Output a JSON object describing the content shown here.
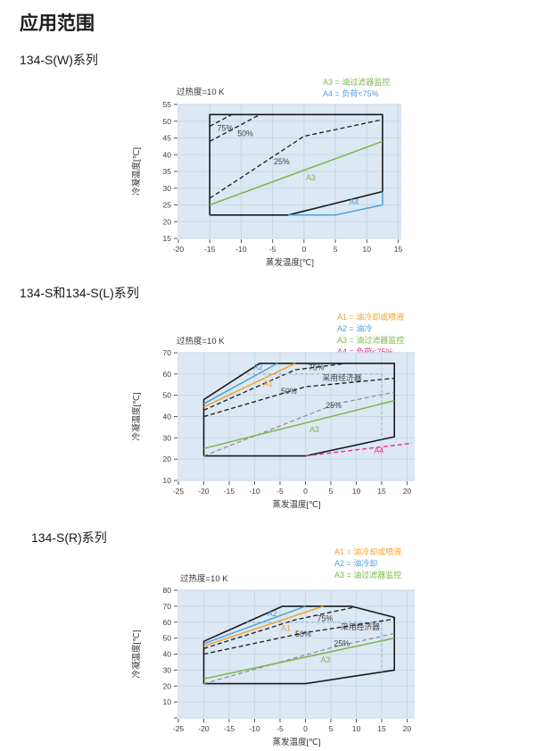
{
  "page": {
    "title": "应用范围"
  },
  "colors": {
    "plot_bg": "#dce8f4",
    "grid": "#c6d7e8",
    "black": "#1a1a1a",
    "green": "#7ab648",
    "blue": "#4da0d8",
    "orange": "#f0a22e",
    "pink": "#e6318a",
    "grey": "#8c8c8c",
    "econ_blue": "#88b2d8",
    "text": "#3d3d3d"
  },
  "chart_data": [
    {
      "type": "line",
      "section_title": "134-S(W)系列",
      "superheat": "过热度=10 K",
      "xlabel": "蒸发温度[℃]",
      "ylabel": "冷凝温度[℃]",
      "xlim": [
        -20,
        15
      ],
      "ylim": [
        15,
        55
      ],
      "xticks": [
        {
          "v": -20,
          "l": "-20"
        },
        {
          "v": -15,
          "l": "-15"
        },
        {
          "v": -10,
          "l": "-10"
        },
        {
          "v": -5,
          "l": "-5"
        },
        {
          "v": 0,
          "l": "0"
        },
        {
          "v": 5,
          "l": "5"
        },
        {
          "v": 10,
          "l": "10"
        },
        {
          "v": 15,
          "l": "15"
        }
      ],
      "yticks": [
        {
          "v": 15,
          "l": "15"
        },
        {
          "v": 20,
          "l": "20"
        },
        {
          "v": 25,
          "l": "25"
        },
        {
          "v": 30,
          "l": "30"
        },
        {
          "v": 35,
          "l": "35"
        },
        {
          "v": 40,
          "l": "40"
        },
        {
          "v": 45,
          "l": "45"
        },
        {
          "v": 50,
          "l": "50"
        },
        {
          "v": 55,
          "l": "55"
        }
      ],
      "grid": true,
      "legend_position": "top-right",
      "legend": [
        {
          "label": "A3 = 油过滤器监控",
          "color": "#7ab648"
        },
        {
          "label": "A4 = 负荷<75%",
          "color": "#4da0d8"
        }
      ],
      "series": [
        {
          "name": "operating-envelope",
          "color": "#1a1a1a",
          "dash": null,
          "width": 1.6,
          "points": [
            [
              -15,
              22
            ],
            [
              -2.5,
              22
            ],
            [
              12.5,
              29
            ],
            [
              12.5,
              52
            ],
            [
              -15,
              52
            ],
            [
              -15,
              22
            ]
          ]
        },
        {
          "name": "A4-boundary",
          "color": "#4da0d8",
          "dash": null,
          "width": 1.5,
          "points": [
            [
              -2.5,
              22
            ],
            [
              5,
              22
            ],
            [
              12.5,
              25
            ],
            [
              12.5,
              29
            ]
          ]
        },
        {
          "name": "A3-oil-filter-line",
          "color": "#7ab648",
          "dash": null,
          "width": 1.5,
          "points": [
            [
              -15,
              25
            ],
            [
              12.5,
              44
            ]
          ]
        },
        {
          "name": "load-75pct",
          "color": "#1a1a1a",
          "dash": "5,3",
          "width": 1.3,
          "points": [
            [
              -15,
              48.5
            ],
            [
              -11.5,
              52
            ]
          ]
        },
        {
          "name": "load-50pct",
          "color": "#1a1a1a",
          "dash": "5,3",
          "width": 1.3,
          "points": [
            [
              -15,
              44
            ],
            [
              -7,
              52
            ]
          ]
        },
        {
          "name": "load-25pct",
          "color": "#1a1a1a",
          "dash": "5,3",
          "width": 1.3,
          "points": [
            [
              -15,
              27
            ],
            [
              0,
              45.5
            ],
            [
              12.5,
              50.5
            ]
          ]
        }
      ],
      "annotations": [
        {
          "text": "75%",
          "x": -13.8,
          "y": 48.0,
          "color": "#3d3d3d",
          "anchor": "start"
        },
        {
          "text": "50%",
          "x": -10.6,
          "y": 46.3,
          "color": "#3d3d3d",
          "anchor": "start"
        },
        {
          "text": "25%",
          "x": -4.8,
          "y": 38.0,
          "color": "#3d3d3d",
          "anchor": "start"
        },
        {
          "text": "A3",
          "x": 0.3,
          "y": 33.2,
          "color": "#7ab648",
          "anchor": "start"
        },
        {
          "text": "A4",
          "x": 7.2,
          "y": 25.9,
          "color": "#4da0d8",
          "anchor": "start"
        }
      ]
    },
    {
      "type": "line",
      "section_title": "134-S和134-S(L)系列",
      "superheat": "过热度=10 K",
      "xlabel": "蒸发温度[℃]",
      "ylabel": "冷凝温度[℃]",
      "xlim": [
        -25,
        20
      ],
      "ylim": [
        10,
        70
      ],
      "xticks": [
        {
          "v": -25,
          "l": "-25"
        },
        {
          "v": -20,
          "l": "-20"
        },
        {
          "v": -15,
          "l": "-15"
        },
        {
          "v": -10,
          "l": "-10"
        },
        {
          "v": -5,
          "l": "-5"
        },
        {
          "v": 0,
          "l": "0"
        },
        {
          "v": 5,
          "l": "5"
        },
        {
          "v": 10,
          "l": "10"
        },
        {
          "v": 15,
          "l": "15"
        },
        {
          "v": 20,
          "l": "20"
        }
      ],
      "yticks": [
        {
          "v": 10,
          "l": "10"
        },
        {
          "v": 20,
          "l": "20"
        },
        {
          "v": 30,
          "l": "30"
        },
        {
          "v": 40,
          "l": "40"
        },
        {
          "v": 50,
          "l": "50"
        },
        {
          "v": 60,
          "l": "60"
        },
        {
          "v": 70,
          "l": "70"
        }
      ],
      "grid": true,
      "legend_position": "top-right",
      "legend": [
        {
          "label": "A1 = 油冷却或喷液",
          "color": "#f0a22e"
        },
        {
          "label": "A2 = 油冷",
          "color": "#4da0d8"
        },
        {
          "label": "A3 = 油过滤器监控",
          "color": "#7ab648"
        },
        {
          "label": "A4 = 负荷<75%",
          "color": "#e6318a"
        }
      ],
      "series": [
        {
          "name": "operating-envelope",
          "color": "#1a1a1a",
          "dash": null,
          "width": 1.6,
          "points": [
            [
              -20,
              21.5
            ],
            [
              0,
              21.5
            ],
            [
              17.5,
              30.5
            ],
            [
              17.5,
              65
            ],
            [
              -9,
              65
            ],
            [
              -20,
              48
            ],
            [
              -20,
              21.5
            ]
          ]
        },
        {
          "name": "A2-oil-cooling-line",
          "color": "#4da0d8",
          "dash": null,
          "width": 1.5,
          "points": [
            [
              -20,
              46
            ],
            [
              -5.5,
              65
            ]
          ]
        },
        {
          "name": "A1-oil-cooling-or-injection-line",
          "color": "#f0a22e",
          "dash": null,
          "width": 1.5,
          "points": [
            [
              -20,
              44.5
            ],
            [
              -2,
              65
            ]
          ]
        },
        {
          "name": "load-75pct",
          "color": "#1a1a1a",
          "dash": "5,3",
          "width": 1.3,
          "points": [
            [
              -20,
              43
            ],
            [
              -2,
              62
            ],
            [
              8,
              65
            ]
          ]
        },
        {
          "name": "load-50pct",
          "color": "#1a1a1a",
          "dash": "5,3",
          "width": 1.3,
          "points": [
            [
              -20,
              40
            ],
            [
              0,
              54
            ],
            [
              17.5,
              58
            ]
          ]
        },
        {
          "name": "load-25pct",
          "color": "#8c8c8c",
          "dash": "5,3",
          "width": 1.2,
          "points": [
            [
              -20,
              21.5
            ],
            [
              6,
              46
            ],
            [
              17.5,
              51.5
            ]
          ]
        },
        {
          "name": "A3-oil-filter-line",
          "color": "#7ab648",
          "dash": null,
          "width": 1.5,
          "points": [
            [
              -20,
              25
            ],
            [
              17.5,
              47.5
            ]
          ]
        },
        {
          "name": "A4-load-75-extension",
          "color": "#e6318a",
          "dash": "5,3",
          "width": 1.4,
          "points": [
            [
              0,
              21.5
            ],
            [
              21,
              27.5
            ]
          ]
        },
        {
          "name": "economizer-limit-horizontal",
          "color": "#88b2d8",
          "dash": "3,3",
          "width": 1.1,
          "points": [
            [
              -11.5,
              60
            ],
            [
              15,
              60
            ]
          ]
        },
        {
          "name": "economizer-limit-vertical",
          "color": "#88b2d8",
          "dash": "3,3",
          "width": 1.1,
          "points": [
            [
              15,
              60
            ],
            [
              15,
              29.2
            ]
          ]
        }
      ],
      "annotations": [
        {
          "text": "A2",
          "x": -10.3,
          "y": 63.2,
          "color": "#4da0d8",
          "anchor": "start"
        },
        {
          "text": "A1",
          "x": -8.3,
          "y": 55.5,
          "color": "#f0a22e",
          "anchor": "start"
        },
        {
          "text": "75%",
          "x": 0.6,
          "y": 63.0,
          "color": "#3d3d3d",
          "anchor": "start"
        },
        {
          "text": "50%",
          "x": -4.8,
          "y": 52.0,
          "color": "#3d3d3d",
          "anchor": "start"
        },
        {
          "text": "25%",
          "x": 4.0,
          "y": 45.3,
          "color": "#3d3d3d",
          "anchor": "start"
        },
        {
          "text": "采用经济器",
          "x": 7.2,
          "y": 58.2,
          "color": "#3d3d3d",
          "anchor": "middle"
        },
        {
          "text": "A3",
          "x": 0.8,
          "y": 34.0,
          "color": "#7ab648",
          "anchor": "start"
        },
        {
          "text": "A4",
          "x": 13.5,
          "y": 24.0,
          "color": "#e6318a",
          "anchor": "start"
        }
      ]
    },
    {
      "type": "line",
      "section_title": "134-S(R)系列",
      "superheat": "过热度=10 K",
      "xlabel": "蒸发温度[℃]",
      "ylabel": "冷凝温度[℃]",
      "xlim": [
        -25,
        20
      ],
      "ylim": [
        0,
        80
      ],
      "xticks": [
        {
          "v": -25,
          "l": "-25"
        },
        {
          "v": -20,
          "l": "-20"
        },
        {
          "v": -15,
          "l": "-15"
        },
        {
          "v": -10,
          "l": "-10"
        },
        {
          "v": -5,
          "l": "-5"
        },
        {
          "v": 0,
          "l": "0"
        },
        {
          "v": 5,
          "l": "5"
        },
        {
          "v": 10,
          "l": "10"
        },
        {
          "v": 15,
          "l": "15"
        },
        {
          "v": 20,
          "l": "20"
        }
      ],
      "yticks": [
        {
          "v": 0,
          "l": ""
        },
        {
          "v": 10,
          "l": "10"
        },
        {
          "v": 20,
          "l": "20"
        },
        {
          "v": 30,
          "l": "30"
        },
        {
          "v": 40,
          "l": "40"
        },
        {
          "v": 50,
          "l": "50"
        },
        {
          "v": 60,
          "l": "60"
        },
        {
          "v": 70,
          "l": "70"
        },
        {
          "v": 80,
          "l": "80"
        }
      ],
      "grid": true,
      "legend_position": "top-right",
      "legend": [
        {
          "label": "A1 = 油冷却或喷液",
          "color": "#f0a22e"
        },
        {
          "label": "A2 = 油冷却",
          "color": "#4da0d8"
        },
        {
          "label": "A3 = 油过滤器监控",
          "color": "#7ab648"
        }
      ],
      "series": [
        {
          "name": "operating-envelope",
          "color": "#1a1a1a",
          "dash": null,
          "width": 1.6,
          "points": [
            [
              -20,
              21.5
            ],
            [
              0,
              21.5
            ],
            [
              17.5,
              30
            ],
            [
              17.5,
              63
            ],
            [
              9,
              70
            ],
            [
              -4.5,
              70
            ],
            [
              -20,
              48
            ],
            [
              -20,
              21.5
            ]
          ]
        },
        {
          "name": "A2-oil-cooling-line",
          "color": "#4da0d8",
          "dash": null,
          "width": 1.5,
          "points": [
            [
              -20,
              46.5
            ],
            [
              0,
              70
            ]
          ]
        },
        {
          "name": "A1-oil-cooling-or-injection-line",
          "color": "#f0a22e",
          "dash": null,
          "width": 1.5,
          "points": [
            [
              -20,
              45
            ],
            [
              3.5,
              70
            ]
          ]
        },
        {
          "name": "load-75pct",
          "color": "#1a1a1a",
          "dash": "5,3",
          "width": 1.3,
          "points": [
            [
              -20,
              43.5
            ],
            [
              -2,
              61.5
            ],
            [
              9.5,
              69.3
            ]
          ]
        },
        {
          "name": "load-50pct",
          "color": "#1a1a1a",
          "dash": "5,3",
          "width": 1.3,
          "points": [
            [
              -20,
              40
            ],
            [
              0,
              53.5
            ],
            [
              17.5,
              62
            ]
          ]
        },
        {
          "name": "load-25pct",
          "color": "#8c8c8c",
          "dash": "5,3",
          "width": 1.2,
          "points": [
            [
              -20,
              21.5
            ],
            [
              5,
              44
            ],
            [
              17.5,
              53
            ]
          ]
        },
        {
          "name": "A3-oil-filter-line",
          "color": "#7ab648",
          "dash": null,
          "width": 1.5,
          "points": [
            [
              -20,
              24.5
            ],
            [
              17.5,
              50
            ]
          ]
        },
        {
          "name": "economizer-limit-horizontal",
          "color": "#88b2d8",
          "dash": "3,3",
          "width": 1.1,
          "points": [
            [
              -11.5,
              60
            ],
            [
              15,
              60
            ]
          ]
        },
        {
          "name": "economizer-limit-vertical",
          "color": "#88b2d8",
          "dash": "3,3",
          "width": 1.1,
          "points": [
            [
              15,
              60
            ],
            [
              15,
              28.8
            ]
          ]
        }
      ],
      "annotations": [
        {
          "text": "A2",
          "x": -7.5,
          "y": 65.4,
          "color": "#4da0d8",
          "anchor": "start"
        },
        {
          "text": "A1",
          "x": -4.8,
          "y": 56.3,
          "color": "#f0a22e",
          "anchor": "start"
        },
        {
          "text": "75%",
          "x": 2.3,
          "y": 62.4,
          "color": "#3d3d3d",
          "anchor": "start"
        },
        {
          "text": "50%",
          "x": -2.0,
          "y": 52.6,
          "color": "#3d3d3d",
          "anchor": "start"
        },
        {
          "text": "25%",
          "x": 5.6,
          "y": 46.6,
          "color": "#3d3d3d",
          "anchor": "start"
        },
        {
          "text": "采用经济器",
          "x": 10.8,
          "y": 57.0,
          "color": "#3d3d3d",
          "anchor": "middle"
        },
        {
          "text": "A3",
          "x": 3.0,
          "y": 36.3,
          "color": "#7ab648",
          "anchor": "start"
        }
      ]
    }
  ]
}
